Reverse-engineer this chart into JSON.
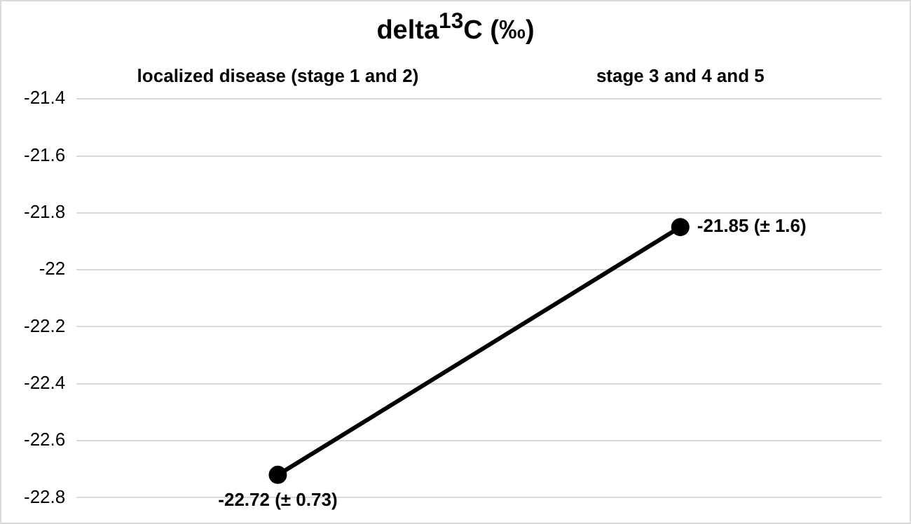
{
  "chart_data": {
    "type": "line",
    "title": "delta$^{13}$C (‰)",
    "categories": [
      "localized disease (stage 1 and 2)",
      "stage 3 and 4 and 5"
    ],
    "series": [
      {
        "color": "#000000",
        "values": [
          -22.72,
          -21.85
        ],
        "value_labels": [
          "-22.72 (± 0.73)",
          "-21.85 (± 1.6)"
        ]
      }
    ],
    "ylim": [
      -22.8,
      -21.4
    ],
    "yticks": [
      -22.8,
      -22.6,
      -22.4,
      -22.2,
      -22,
      -21.8,
      -21.6,
      -21.4
    ],
    "grid": "y",
    "legend": false,
    "marker": "circle",
    "line_style": "solid"
  }
}
